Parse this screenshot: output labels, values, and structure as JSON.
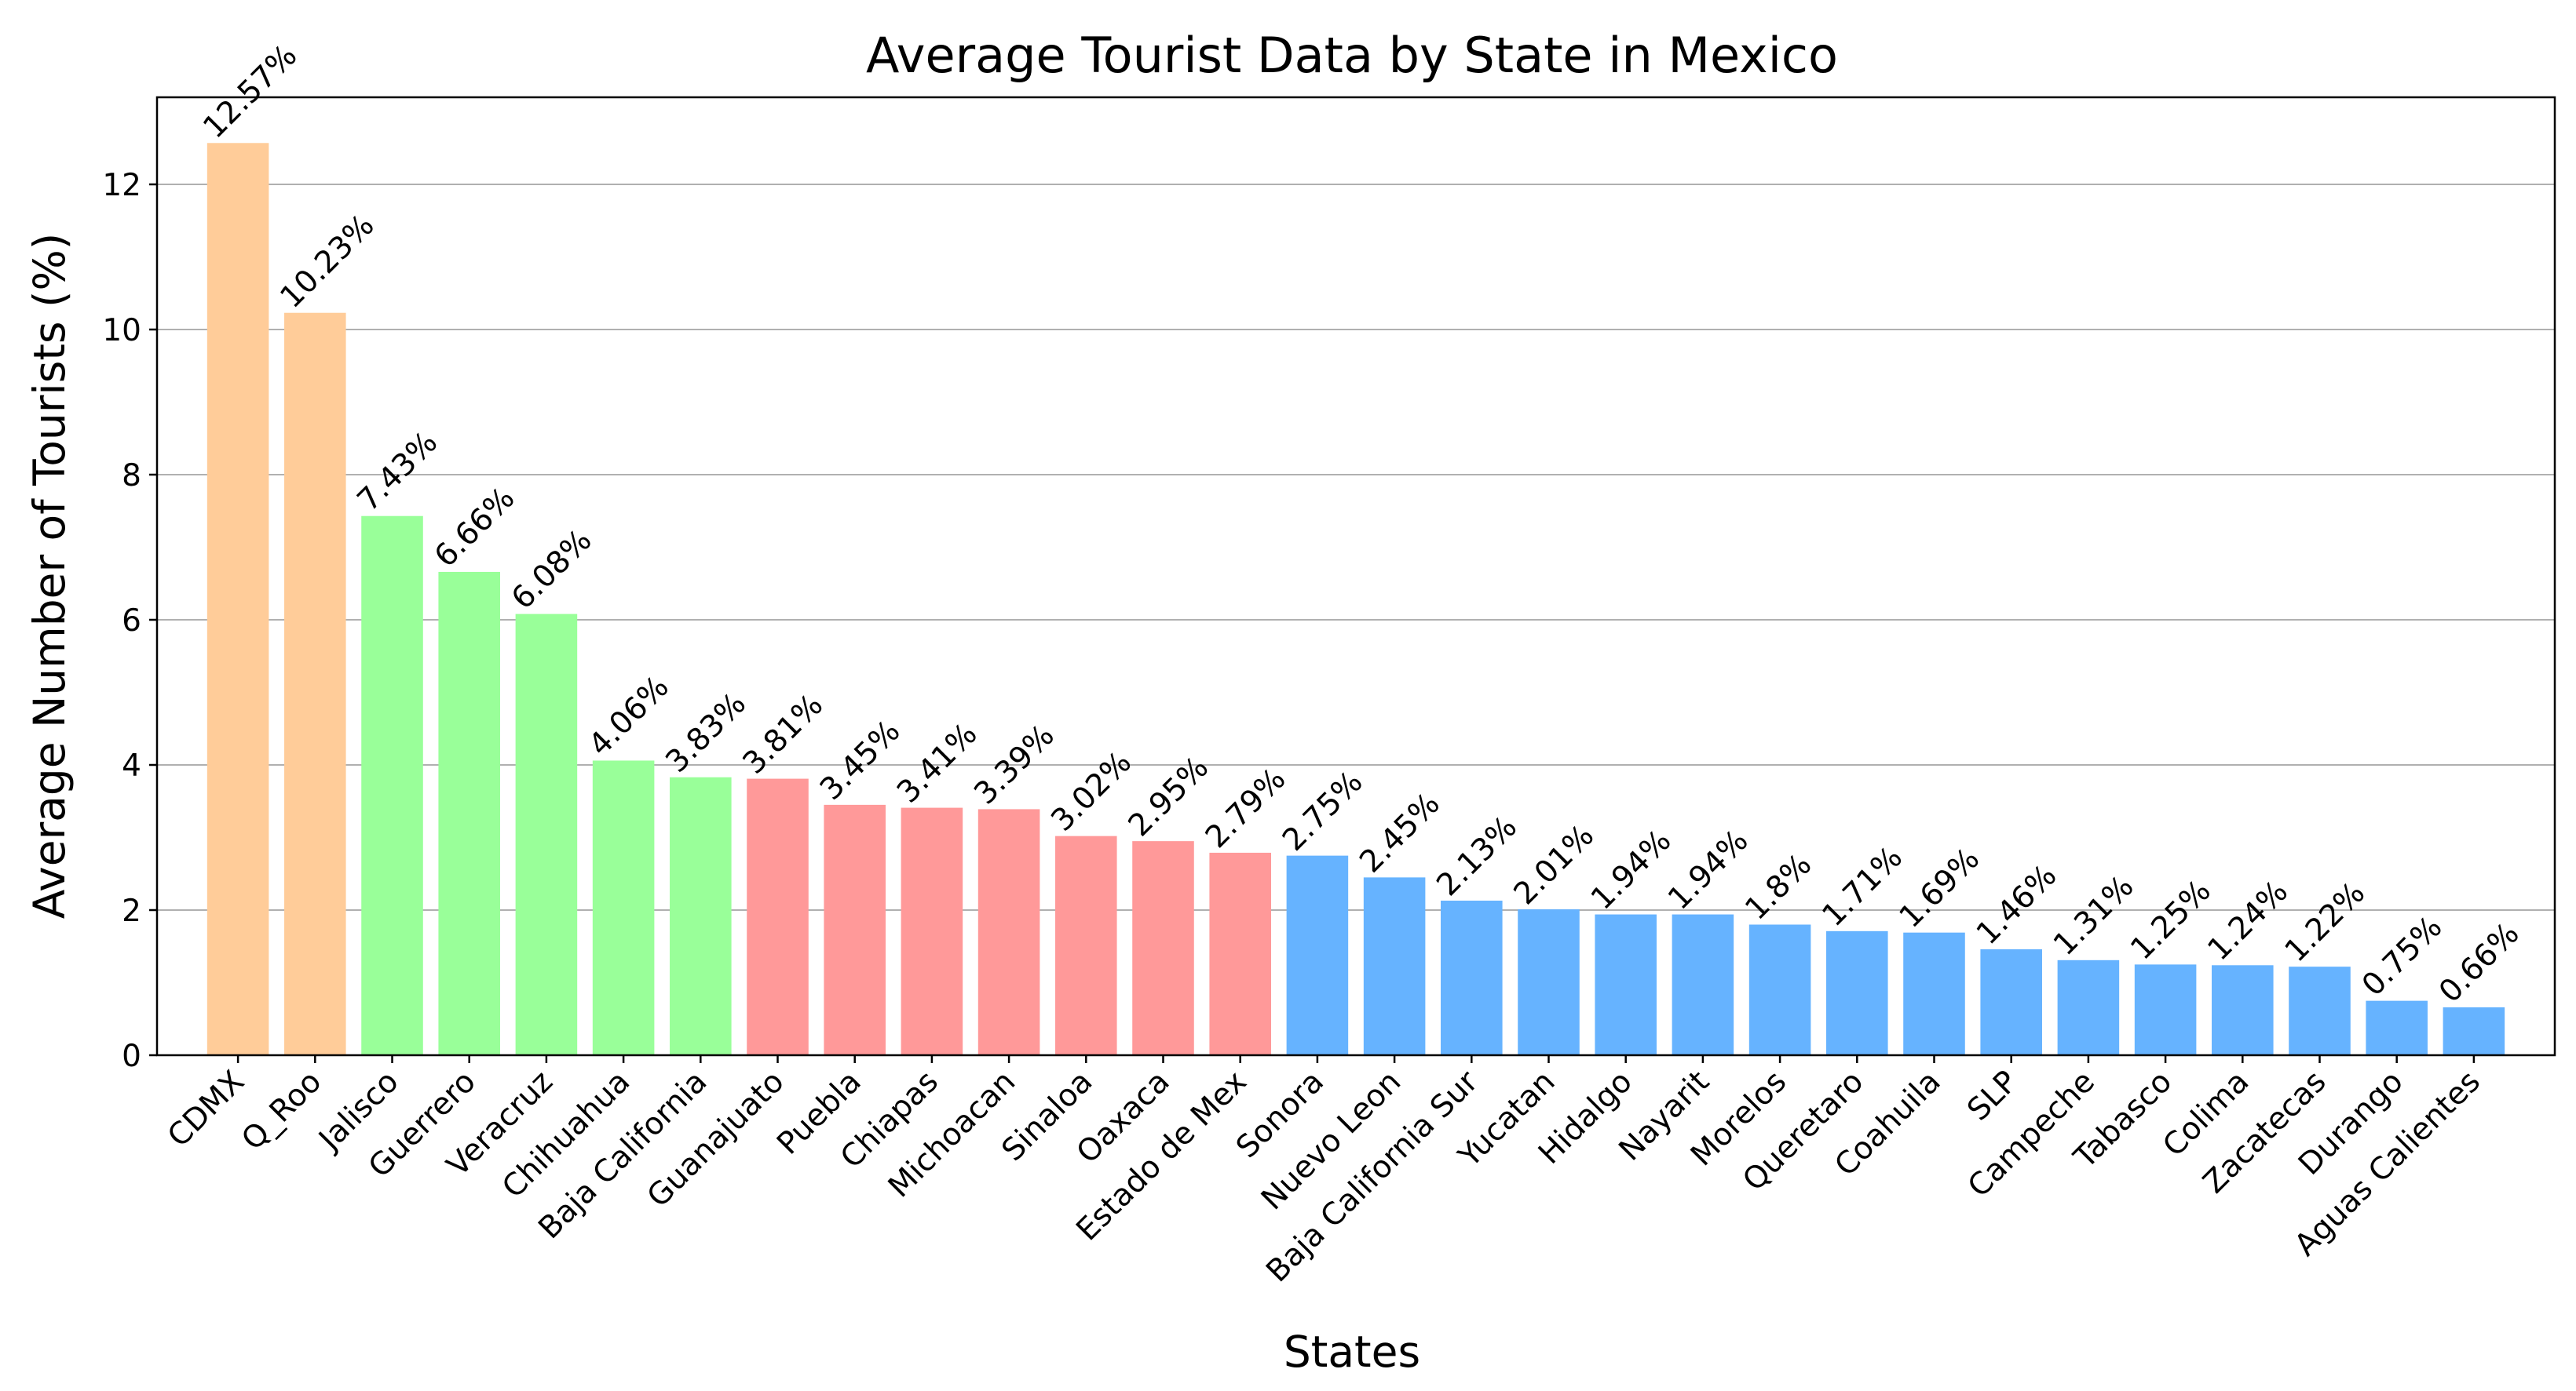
{
  "chart_data": {
    "type": "bar",
    "title": "Average Tourist Data by State in Mexico",
    "xlabel": "States",
    "ylabel": "Average Number of Tourists (%)",
    "ylim": [
      0,
      13.2
    ],
    "yticks": [
      0,
      2,
      4,
      6,
      8,
      10,
      12
    ],
    "grid": "horizontal",
    "categories": [
      "CDMX",
      "Q_Roo",
      "Jalisco",
      "Guerrero",
      "Veracruz",
      "Chihuahua",
      "Baja California",
      "Guanajuato",
      "Puebla",
      "Chiapas",
      "Michoacan",
      "Sinaloa",
      "Oaxaca",
      "Estado de Mex",
      "Sonora",
      "Nuevo Leon",
      "Baja California Sur",
      "Yucatan",
      "Hidalgo",
      "Nayarit",
      "Morelos",
      "Queretaro",
      "Coahuila",
      "SLP",
      "Campeche",
      "Tabasco",
      "Colima",
      "Zacatecas",
      "Durango",
      "Aguas Calientes"
    ],
    "values": [
      12.57,
      10.23,
      7.43,
      6.66,
      6.08,
      4.06,
      3.83,
      3.81,
      3.45,
      3.41,
      3.39,
      3.02,
      2.95,
      2.79,
      2.75,
      2.45,
      2.13,
      2.01,
      1.94,
      1.94,
      1.8,
      1.71,
      1.69,
      1.46,
      1.31,
      1.25,
      1.24,
      1.22,
      0.75,
      0.66
    ],
    "data_labels": [
      "12.57%",
      "10.23%",
      "7.43%",
      "6.66%",
      "6.08%",
      "4.06%",
      "3.83%",
      "3.81%",
      "3.45%",
      "3.41%",
      "3.39%",
      "3.02%",
      "2.95%",
      "2.79%",
      "2.75%",
      "2.45%",
      "2.13%",
      "2.01%",
      "1.94%",
      "1.94%",
      "1.8%",
      "1.71%",
      "1.69%",
      "1.46%",
      "1.31%",
      "1.25%",
      "1.24%",
      "1.22%",
      "0.75%",
      "0.66%"
    ],
    "bar_colors": [
      "#ffcc99",
      "#ffcc99",
      "#99ff99",
      "#99ff99",
      "#99ff99",
      "#99ff99",
      "#99ff99",
      "#ff9999",
      "#ff9999",
      "#ff9999",
      "#ff9999",
      "#ff9999",
      "#ff9999",
      "#ff9999",
      "#66b3ff",
      "#66b3ff",
      "#66b3ff",
      "#66b3ff",
      "#66b3ff",
      "#66b3ff",
      "#66b3ff",
      "#66b3ff",
      "#66b3ff",
      "#66b3ff",
      "#66b3ff",
      "#66b3ff",
      "#66b3ff",
      "#66b3ff",
      "#66b3ff",
      "#66b3ff"
    ]
  }
}
